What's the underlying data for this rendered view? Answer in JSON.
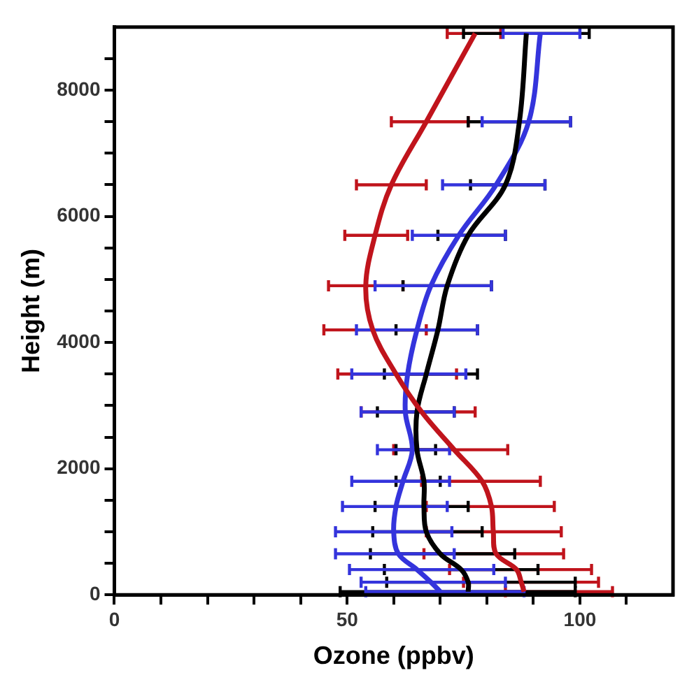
{
  "chart_data": {
    "type": "line",
    "xlabel": "Ozone (ppbv)",
    "ylabel": "Height (m)",
    "xlim": [
      0,
      120
    ],
    "ylim": [
      0,
      9000
    ],
    "xticks": [
      0,
      {
        "value": 10,
        "label": null
      },
      {
        "value": 20,
        "label": null
      },
      {
        "value": 30,
        "label": null
      },
      {
        "value": 40,
        "label": null
      },
      50,
      {
        "value": 60,
        "label": null
      },
      {
        "value": 70,
        "label": null
      },
      {
        "value": 80,
        "label": null
      },
      {
        "value": 90,
        "label": null
      },
      100,
      {
        "value": 110,
        "label": null
      }
    ],
    "yticks": [
      0,
      {
        "value": 500,
        "label": null
      },
      {
        "value": 1000,
        "label": null
      },
      {
        "value": 1500,
        "label": null
      },
      2000,
      {
        "value": 2500,
        "label": null
      },
      {
        "value": 3000,
        "label": null
      },
      {
        "value": 3500,
        "label": null
      },
      4000,
      {
        "value": 4500,
        "label": null
      },
      {
        "value": 5000,
        "label": null
      },
      {
        "value": 5500,
        "label": null
      },
      6000,
      {
        "value": 6500,
        "label": null
      },
      {
        "value": 7000,
        "label": null
      },
      {
        "value": 7500,
        "label": null
      },
      8000,
      {
        "value": 8500,
        "label": null
      }
    ],
    "grid": false,
    "legend": false,
    "marker": "none",
    "line_style": "solid",
    "series": [
      {
        "color": "#c0141c",
        "x": [
          77.5,
          67,
          59.5,
          56,
          54,
          55.5,
          60.5,
          66,
          73,
          79,
          81,
          81.4,
          82,
          86.4,
          87.4,
          88
        ],
        "values": [
          8900,
          7500,
          6500,
          5700,
          4900,
          4200,
          3500,
          2900,
          2300,
          1800,
          1400,
          1000,
          650,
          400,
          200,
          50
        ],
        "xerrors": [
          [
            71.5,
            83
          ],
          [
            59.5,
            76
          ],
          [
            52,
            67
          ],
          [
            49.5,
            63
          ],
          [
            46,
            62
          ],
          [
            45,
            67
          ],
          [
            48,
            73.5
          ],
          [
            53,
            77.5
          ],
          [
            60,
            84.5
          ],
          [
            66,
            91.5
          ],
          [
            67,
            94.5
          ],
          [
            67,
            96
          ],
          [
            66.5,
            96.5
          ],
          [
            72,
            102.5
          ],
          [
            75,
            104
          ],
          [
            84,
            107
          ]
        ]
      },
      {
        "color": "#000000",
        "x": [
          88.5,
          87,
          84,
          76,
          71.5,
          69.5,
          67,
          65,
          65,
          66.5,
          66.5,
          67,
          70,
          74.5,
          76,
          76
        ],
        "values": [
          8900,
          7500,
          6500,
          5700,
          4900,
          4200,
          3500,
          2900,
          2300,
          1800,
          1400,
          1000,
          650,
          400,
          200,
          50
        ],
        "xerrors": [
          [
            75,
            102
          ],
          [
            76,
            98
          ],
          [
            76.5,
            92.5
          ],
          [
            69.5,
            84
          ],
          [
            62,
            81
          ],
          [
            60.5,
            78
          ],
          [
            58,
            78
          ],
          [
            56.5,
            73
          ],
          [
            60.5,
            69
          ],
          [
            60.5,
            70
          ],
          [
            56,
            76
          ],
          [
            55.5,
            79
          ],
          [
            55,
            86
          ],
          [
            58,
            91
          ],
          [
            58.5,
            99
          ],
          [
            48.5,
            99
          ]
        ]
      },
      {
        "color": "#3434dc",
        "x": [
          91.5,
          89,
          82,
          74,
          68,
          65,
          63,
          62.5,
          64,
          62,
          60.5,
          60,
          61,
          65,
          68,
          70
        ],
        "values": [
          8900,
          7500,
          6500,
          5700,
          4900,
          4200,
          3500,
          2900,
          2300,
          1800,
          1400,
          1000,
          650,
          400,
          200,
          50
        ],
        "xerrors": [
          [
            83.5,
            100
          ],
          [
            79,
            98
          ],
          [
            70.5,
            92.5
          ],
          [
            64,
            84
          ],
          [
            56,
            81
          ],
          [
            52,
            78
          ],
          [
            51,
            75.5
          ],
          [
            53,
            73
          ],
          [
            56.5,
            72
          ],
          [
            51,
            72
          ],
          [
            49,
            71.5
          ],
          [
            47.5,
            72.5
          ],
          [
            47.5,
            73
          ],
          [
            50.5,
            81.5
          ],
          [
            53,
            84
          ],
          [
            54,
            88
          ]
        ]
      }
    ]
  }
}
